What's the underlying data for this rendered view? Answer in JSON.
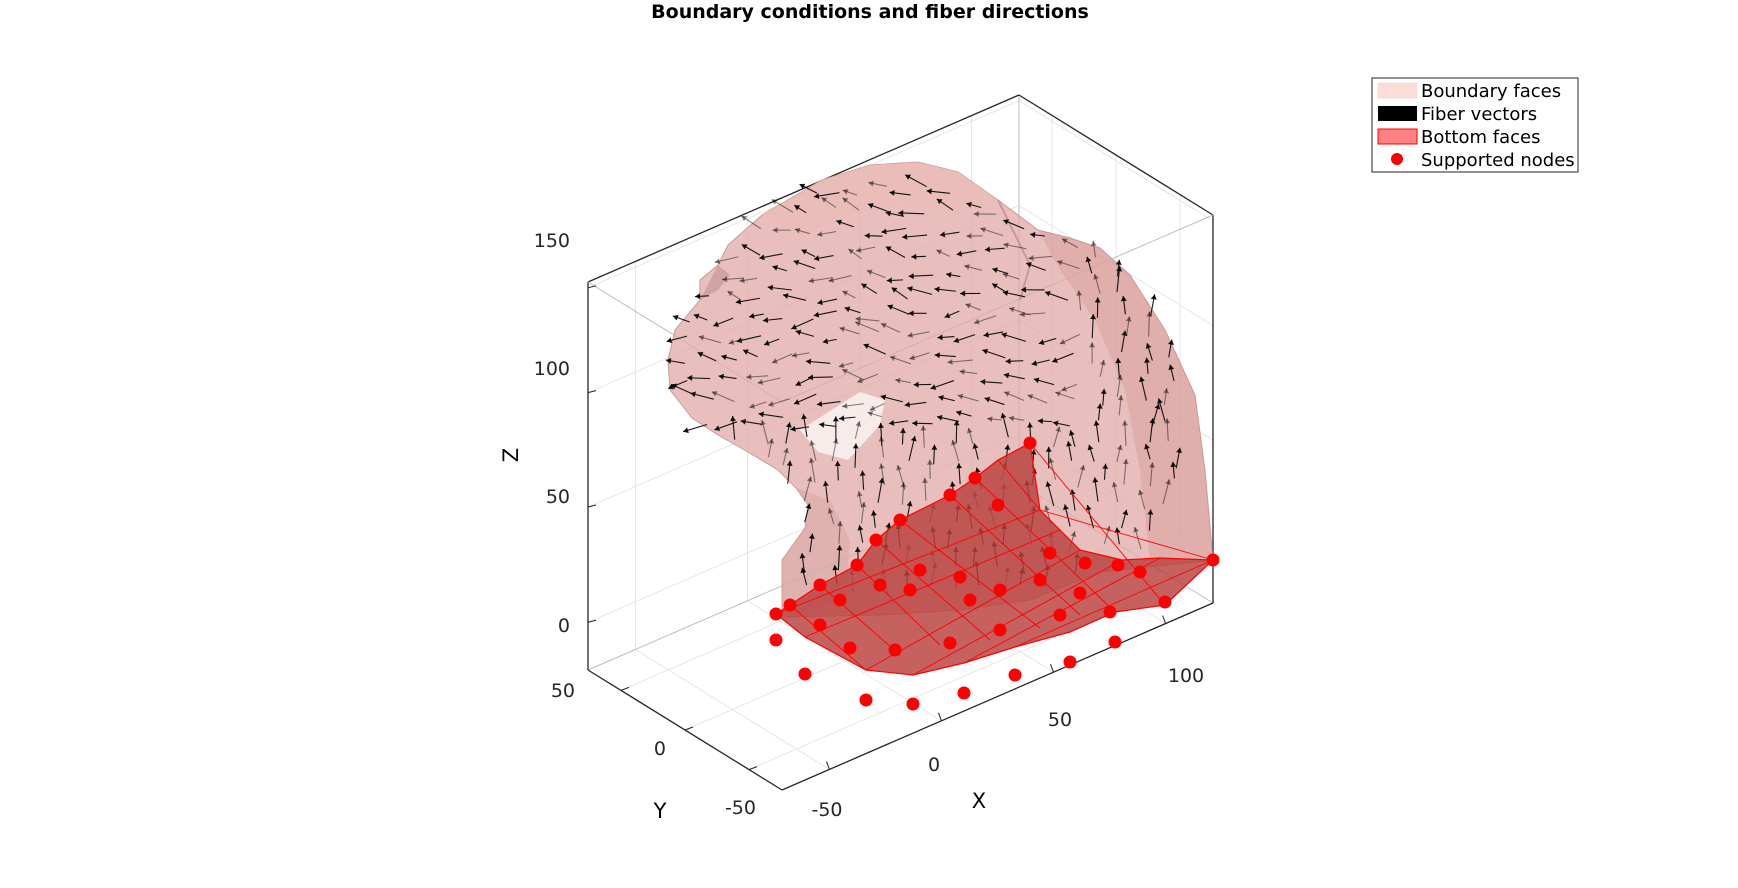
{
  "chart_data": {
    "type": "3d-surface-quiver",
    "title": "Boundary conditions and fiber directions",
    "xlabel": "X",
    "ylabel": "Y",
    "zlabel": "Z",
    "x_ticks": [
      "-50",
      "0",
      "50",
      "100"
    ],
    "y_ticks": [
      "-50",
      "0",
      "50"
    ],
    "z_ticks": [
      "0",
      "50",
      "100",
      "150"
    ],
    "grid": true,
    "box": true,
    "legend_position": "top-right",
    "series": [
      {
        "name": "Boundary faces",
        "kind": "patch",
        "color": "#f5d0cc"
      },
      {
        "name": "Fiber vectors",
        "kind": "quiver",
        "color": "#000000"
      },
      {
        "name": "Bottom faces",
        "kind": "patch",
        "color": "#ff8080"
      },
      {
        "name": "Supported nodes",
        "kind": "marker",
        "color": "#ff0000"
      }
    ],
    "colors": {
      "surface": "#e0aaa6",
      "bottom_fill": "#b8403d",
      "bottom_edge": "#ff0000",
      "node": "#ff0000",
      "arrow": "#000000",
      "grid": "#e6e6e6",
      "axes": "#262626"
    }
  }
}
